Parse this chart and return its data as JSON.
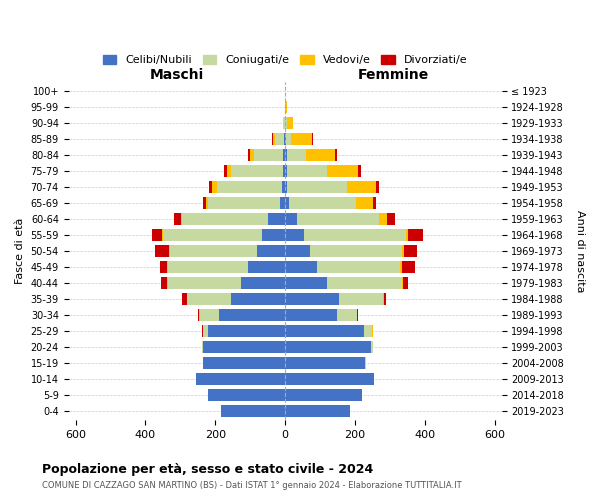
{
  "age_groups": [
    "100+",
    "95-99",
    "90-94",
    "85-89",
    "80-84",
    "75-79",
    "70-74",
    "65-69",
    "60-64",
    "55-59",
    "50-54",
    "45-49",
    "40-44",
    "35-39",
    "30-34",
    "25-29",
    "20-24",
    "15-19",
    "10-14",
    "5-9",
    "0-4"
  ],
  "birth_years": [
    "≤ 1923",
    "1924-1928",
    "1929-1933",
    "1934-1938",
    "1939-1943",
    "1944-1948",
    "1949-1953",
    "1954-1958",
    "1959-1963",
    "1964-1968",
    "1969-1973",
    "1974-1978",
    "1979-1983",
    "1984-1988",
    "1989-1993",
    "1994-1998",
    "1999-2003",
    "2004-2008",
    "2009-2013",
    "2014-2018",
    "2019-2023"
  ],
  "males": {
    "celibi": [
      0,
      0,
      0,
      3,
      5,
      5,
      10,
      15,
      50,
      65,
      80,
      105,
      125,
      155,
      190,
      220,
      235,
      235,
      255,
      220,
      185
    ],
    "coniugati": [
      0,
      1,
      5,
      25,
      85,
      150,
      185,
      205,
      245,
      285,
      250,
      230,
      210,
      125,
      55,
      15,
      4,
      1,
      1,
      0,
      0
    ],
    "vedovi": [
      0,
      0,
      1,
      8,
      12,
      12,
      15,
      8,
      4,
      4,
      4,
      4,
      2,
      2,
      1,
      1,
      0,
      0,
      0,
      0,
      0
    ],
    "divorziati": [
      0,
      0,
      0,
      1,
      3,
      8,
      8,
      8,
      18,
      28,
      38,
      18,
      18,
      12,
      4,
      1,
      0,
      0,
      0,
      0,
      0
    ]
  },
  "females": {
    "nubili": [
      0,
      0,
      1,
      3,
      4,
      4,
      6,
      12,
      35,
      55,
      70,
      90,
      120,
      155,
      150,
      225,
      245,
      230,
      255,
      220,
      185
    ],
    "coniugate": [
      0,
      1,
      4,
      15,
      55,
      115,
      170,
      190,
      235,
      290,
      265,
      240,
      215,
      125,
      55,
      25,
      8,
      1,
      1,
      0,
      0
    ],
    "vedove": [
      0,
      4,
      18,
      60,
      85,
      90,
      85,
      50,
      22,
      8,
      6,
      4,
      4,
      2,
      1,
      1,
      0,
      0,
      0,
      0,
      0
    ],
    "divorziate": [
      0,
      0,
      0,
      1,
      4,
      8,
      8,
      8,
      22,
      42,
      38,
      38,
      12,
      8,
      4,
      1,
      0,
      0,
      0,
      0,
      0
    ]
  },
  "colors": {
    "celibi": "#4472c4",
    "coniugati": "#c5d9a0",
    "vedovi": "#ffc000",
    "divorziati": "#cc0000"
  },
  "legend_labels": [
    "Celibi/Nubili",
    "Coniugati/e",
    "Vedovi/e",
    "Divorziati/e"
  ],
  "title": "Popolazione per età, sesso e stato civile - 2024",
  "subtitle": "COMUNE DI CAZZAGO SAN MARTINO (BS) - Dati ISTAT 1° gennaio 2024 - Elaborazione TUTTITALIA.IT",
  "label_left": "Maschi",
  "label_right": "Femmine",
  "ylabel_left": "Fasce di età",
  "ylabel_right": "Anni di nascita",
  "xlim": 620,
  "bg_color": "#ffffff",
  "plot_bg": "#ffffff",
  "grid_color": "#cccccc",
  "bar_height": 0.75
}
